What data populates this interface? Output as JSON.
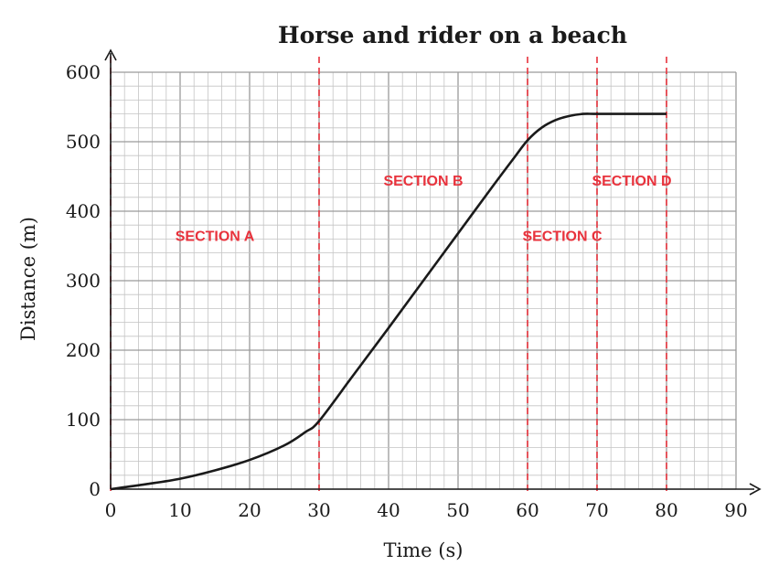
{
  "chart_data": {
    "type": "line",
    "title": "Horse and rider on a beach",
    "xlabel": "Time (s)",
    "ylabel": "Distance (m)",
    "xlim": [
      0,
      90
    ],
    "ylim": [
      0,
      600
    ],
    "grid": true,
    "x_ticks": [
      "0",
      "10",
      "20",
      "30",
      "40",
      "50",
      "60",
      "70",
      "80",
      "90"
    ],
    "y_ticks": [
      "0",
      "100",
      "200",
      "300",
      "400",
      "500",
      "600"
    ],
    "series": [
      {
        "x": [
          0,
          5,
          10,
          15,
          20,
          25,
          28,
          30,
          35,
          40,
          45,
          50,
          55,
          58,
          60,
          62,
          64,
          66,
          68,
          70,
          75,
          80
        ],
        "y": [
          0,
          7,
          15,
          27,
          42,
          63,
          82,
          98,
          165,
          232,
          300,
          368,
          436,
          476,
          502,
          520,
          531,
          537,
          540,
          540,
          540,
          540
        ]
      }
    ],
    "section_boundaries": [
      0,
      30,
      60,
      70,
      80
    ],
    "annotations": [
      {
        "text": "SECTION A",
        "x": 15,
        "y": 365
      },
      {
        "text": "SECTION B",
        "x": 45,
        "y": 445
      },
      {
        "text": "SECTION C",
        "x": 65,
        "y": 365
      },
      {
        "text": "SECTION D",
        "x": 75,
        "y": 445
      }
    ]
  }
}
